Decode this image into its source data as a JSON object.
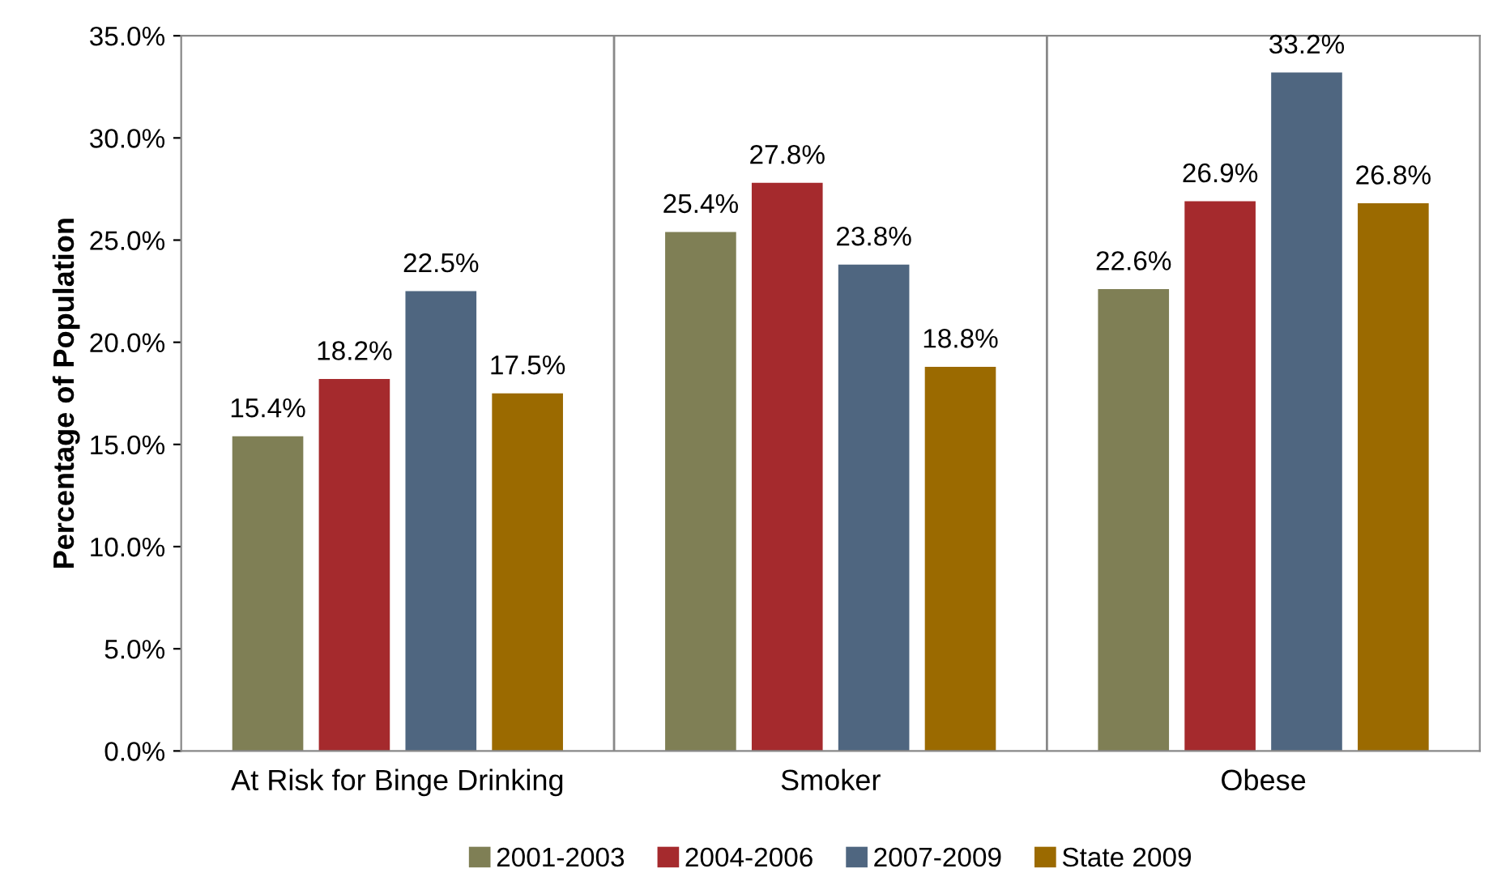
{
  "chart_data": {
    "type": "bar",
    "ylabel": "Percentage of Population",
    "categories": [
      "At Risk for Binge Drinking",
      "Smoker",
      "Obese"
    ],
    "series": [
      {
        "name": "2001-2003",
        "color": "#7f7f55",
        "values": [
          15.4,
          25.4,
          22.6
        ],
        "value_labels": [
          "15.4%",
          "25.4%",
          "22.6%"
        ]
      },
      {
        "name": "2004-2006",
        "color": "#a52a2d",
        "values": [
          18.2,
          27.8,
          26.9
        ],
        "value_labels": [
          "18.2%",
          "27.8%",
          "26.9%"
        ]
      },
      {
        "name": "2007-2009",
        "color": "#4f6680",
        "values": [
          22.5,
          23.8,
          33.2
        ],
        "value_labels": [
          "22.5%",
          "23.8%",
          "33.2%"
        ]
      },
      {
        "name": "State 2009",
        "color": "#9b6a00",
        "values": [
          17.5,
          18.8,
          26.8
        ],
        "value_labels": [
          "17.5%",
          "18.8%",
          "26.8%"
        ]
      }
    ],
    "ylim": [
      0,
      35
    ],
    "yticks": [
      {
        "value": 0,
        "label": "0.0%"
      },
      {
        "value": 5,
        "label": "5.0%"
      },
      {
        "value": 10,
        "label": "10.0%"
      },
      {
        "value": 15,
        "label": "15.0%"
      },
      {
        "value": 20,
        "label": "20.0%"
      },
      {
        "value": 25,
        "label": "25.0%"
      },
      {
        "value": 30,
        "label": "30.0%"
      },
      {
        "value": 35,
        "label": "35.0%"
      }
    ],
    "grid": "x",
    "legend": "bottom"
  }
}
